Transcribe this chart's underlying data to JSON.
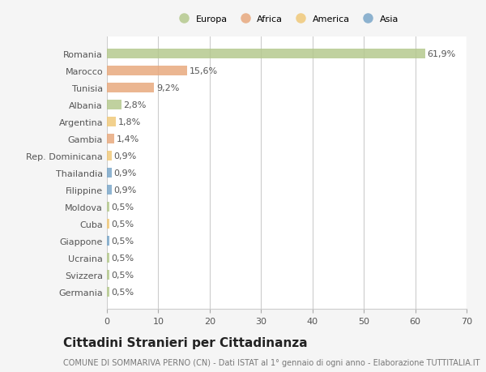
{
  "categories": [
    "Romania",
    "Marocco",
    "Tunisia",
    "Albania",
    "Argentina",
    "Gambia",
    "Rep. Dominicana",
    "Thailandia",
    "Filippine",
    "Moldova",
    "Cuba",
    "Giappone",
    "Ucraina",
    "Svizzera",
    "Germania"
  ],
  "values": [
    61.9,
    15.6,
    9.2,
    2.8,
    1.8,
    1.4,
    0.9,
    0.9,
    0.9,
    0.5,
    0.5,
    0.5,
    0.5,
    0.5,
    0.5
  ],
  "labels": [
    "61,9%",
    "15,6%",
    "9,2%",
    "2,8%",
    "1,8%",
    "1,4%",
    "0,9%",
    "0,9%",
    "0,9%",
    "0,5%",
    "0,5%",
    "0,5%",
    "0,5%",
    "0,5%",
    "0,5%"
  ],
  "colors": [
    "#b5c98e",
    "#e8a97e",
    "#e8a97e",
    "#b5c98e",
    "#f0c97a",
    "#e8a97e",
    "#f0c97a",
    "#7ba7c9",
    "#7ba7c9",
    "#b5c98e",
    "#f0c97a",
    "#7ba7c9",
    "#b5c98e",
    "#b5c98e",
    "#b5c98e"
  ],
  "legend_labels": [
    "Europa",
    "Africa",
    "America",
    "Asia"
  ],
  "legend_colors": [
    "#b5c98e",
    "#e8a97e",
    "#f0c97a",
    "#7ba7c9"
  ],
  "title": "Cittadini Stranieri per Cittadinanza",
  "subtitle": "COMUNE DI SOMMARIVA PERNO (CN) - Dati ISTAT al 1° gennaio di ogni anno - Elaborazione TUTTITALIA.IT",
  "xlim": [
    0,
    70
  ],
  "xticks": [
    0,
    10,
    20,
    30,
    40,
    50,
    60,
    70
  ],
  "background_color": "#f5f5f5",
  "bar_background": "#ffffff",
  "grid_color": "#cccccc",
  "title_fontsize": 11,
  "subtitle_fontsize": 7,
  "label_fontsize": 8,
  "tick_fontsize": 8
}
